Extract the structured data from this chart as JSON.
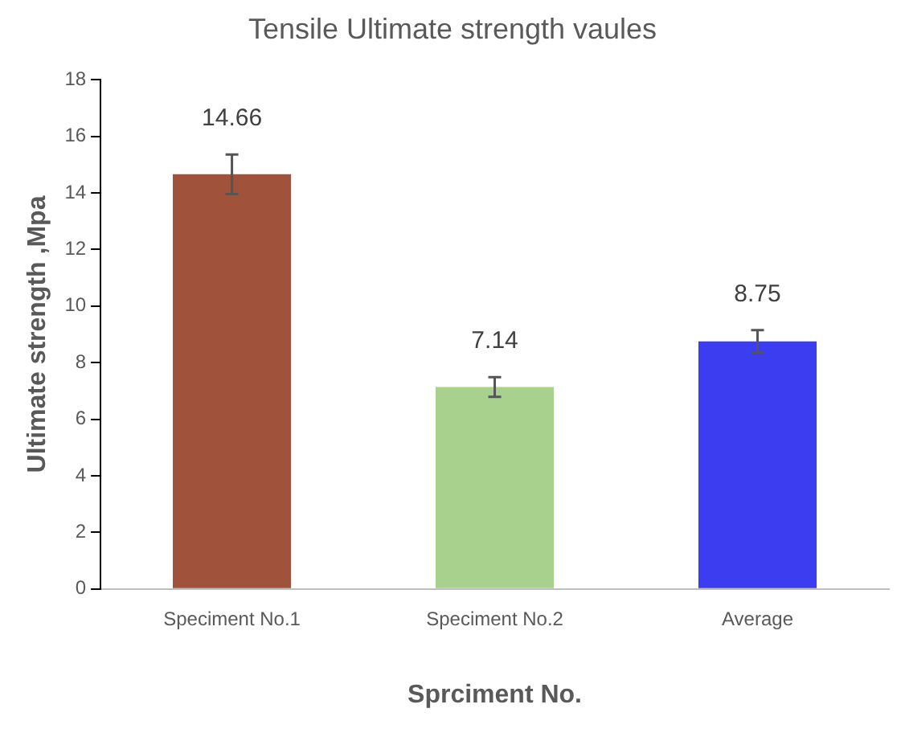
{
  "chart_data": {
    "type": "bar",
    "title": "Tensile Ultimate strength vaules",
    "xlabel": "Sprciment No.",
    "ylabel": "Ultimate strength ,Mpa",
    "categories": [
      "Speciment No.1",
      "Speciment No.2",
      "Average"
    ],
    "values": [
      14.66,
      7.14,
      8.75
    ],
    "colors": [
      "#a0523a",
      "#a9d18e",
      "#3c3cf0"
    ],
    "errors": [
      0.7,
      0.35,
      0.4
    ],
    "data_labels": true,
    "ylim": [
      0,
      18
    ],
    "yticks": [
      0,
      2,
      4,
      6,
      8,
      10,
      12,
      14,
      16,
      18
    ],
    "grid": false,
    "legend": false
  }
}
